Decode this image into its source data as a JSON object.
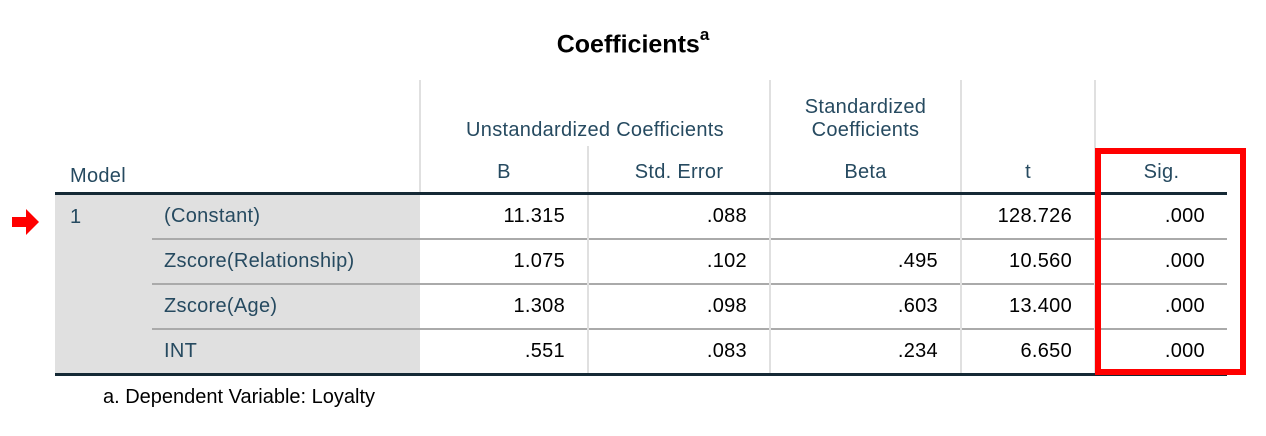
{
  "title": "Coefficients",
  "title_superscript": "a",
  "headers": {
    "model": "Model",
    "unstandardized": "Unstandardized Coefficients",
    "standardized_line1": "Standardized",
    "standardized_line2": "Coefficients",
    "b": "B",
    "std_error": "Std. Error",
    "beta": "Beta",
    "t": "t",
    "sig": "Sig."
  },
  "rows": [
    {
      "model": "1",
      "label": "(Constant)",
      "b": "11.315",
      "se": ".088",
      "beta": "",
      "t": "128.726",
      "sig": ".000"
    },
    {
      "model": "",
      "label": "Zscore(Relationship)",
      "b": "1.075",
      "se": ".102",
      "beta": ".495",
      "t": "10.560",
      "sig": ".000"
    },
    {
      "model": "",
      "label": "Zscore(Age)",
      "b": "1.308",
      "se": ".098",
      "beta": ".603",
      "t": "13.400",
      "sig": ".000"
    },
    {
      "model": "",
      "label": "INT",
      "b": ".551",
      "se": ".083",
      "beta": ".234",
      "t": "6.650",
      "sig": ".000"
    }
  ],
  "footnote": "a. Dependent Variable: Loyalty",
  "colors": {
    "highlight": "#ff0000",
    "header_text": "#264a60",
    "label_bg": "#e0e0e0"
  },
  "icons": {
    "row_pointer": "red-arrow-icon"
  }
}
